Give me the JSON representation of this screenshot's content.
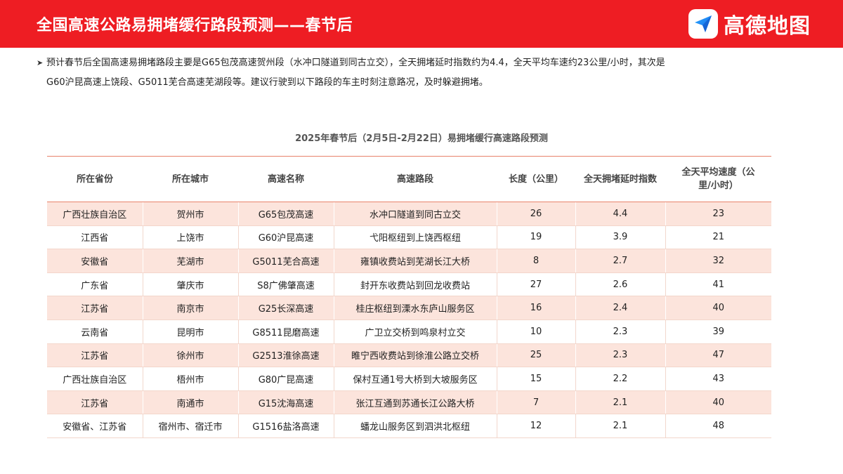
{
  "header": {
    "title": "全国高速公路易拥堵缓行路段预测——春节后",
    "brand_name": "高德地图",
    "brand_icon": "navigation-arrow-icon",
    "bg_color": "#ee1d23"
  },
  "intro": {
    "line1": "预计春节后全国高速易拥堵路段主要是G65包茂高速贺州段（水冲口隧道到同古立交），全天拥堵延时指数约为4.4，全天平均车速约23公里/小时，其次是",
    "line2": "G60沪昆高速上饶段、G5011芜合高速芜湖段等。建议行驶到以下路段的车主时刻注意路况，及时躲避拥堵。"
  },
  "table": {
    "caption": "2025年春节后（2月5日-2月22日）易拥堵缓行高速路段预测",
    "headers": [
      "所在省份",
      "所在城市",
      "高速名称",
      "高速路段",
      "长度（公里）",
      "全天拥堵延时指数",
      "全天平均速度（公里/小时）"
    ],
    "rows": [
      [
        "广西壮族自治区",
        "贺州市",
        "G65包茂高速",
        "水冲口隧道到同古立交",
        "26",
        "4.4",
        "23"
      ],
      [
        "江西省",
        "上饶市",
        "G60沪昆高速",
        "弋阳枢纽到上饶西枢纽",
        "19",
        "3.9",
        "21"
      ],
      [
        "安徽省",
        "芜湖市",
        "G5011芜合高速",
        "雍镇收费站到芜湖长江大桥",
        "8",
        "2.7",
        "32"
      ],
      [
        "广东省",
        "肇庆市",
        "S8广佛肇高速",
        "封开东收费站到回龙收费站",
        "27",
        "2.6",
        "41"
      ],
      [
        "江苏省",
        "南京市",
        "G25长深高速",
        "桂庄枢纽到溧水东庐山服务区",
        "16",
        "2.4",
        "40"
      ],
      [
        "云南省",
        "昆明市",
        "G8511昆磨高速",
        "广卫立交桥到鸣泉村立交",
        "10",
        "2.3",
        "39"
      ],
      [
        "江苏省",
        "徐州市",
        "G2513淮徐高速",
        "睢宁西收费站到徐淮公路立交桥",
        "25",
        "2.3",
        "47"
      ],
      [
        "广西壮族自治区",
        "梧州市",
        "G80广昆高速",
        "保村互通1号大桥到大坡服务区",
        "15",
        "2.2",
        "43"
      ],
      [
        "江苏省",
        "南通市",
        "G15沈海高速",
        "张江互通到苏通长江公路大桥",
        "7",
        "2.1",
        "40"
      ],
      [
        "安徽省、江苏省",
        "宿州市、宿迁市",
        "G1516盐洛高速",
        "蟠龙山服务区到泗洪北枢纽",
        "12",
        "2.1",
        "48"
      ]
    ]
  }
}
